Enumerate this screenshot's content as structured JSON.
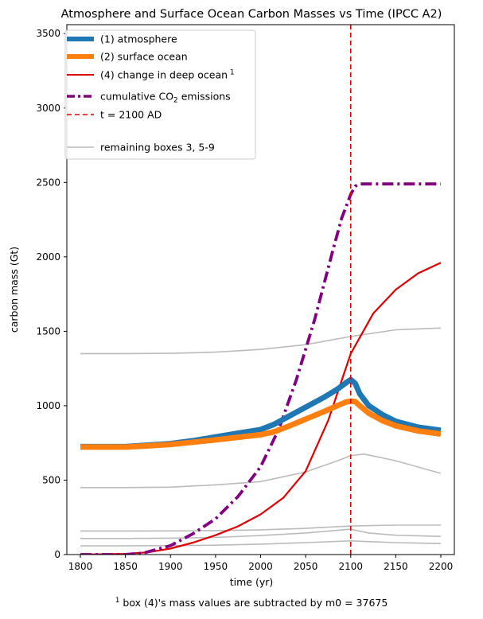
{
  "chart_data": {
    "type": "line",
    "title": "Atmosphere and Surface Ocean Carbon Masses vs Time (IPCC A2)",
    "xlabel": "time (yr)",
    "ylabel": "carbon mass (Gt)",
    "xlim": [
      1785,
      2215
    ],
    "ylim": [
      0,
      3560
    ],
    "xticks": [
      1800,
      1850,
      1900,
      1950,
      2000,
      2050,
      2100,
      2150,
      2200
    ],
    "yticks": [
      0,
      500,
      1000,
      1500,
      2000,
      2500,
      3000,
      3500
    ],
    "grid": false,
    "legend_position": "top-left",
    "footnote": "box (4)'s mass values are subtracted by m0 = 37675",
    "vertical_line": {
      "x": 2100,
      "label": "t = 2100 AD",
      "color": "#e00000"
    },
    "series": [
      {
        "name": "(1) atmosphere",
        "color": "#1f77b4",
        "style": "solid",
        "x": [
          1800,
          1850,
          1875,
          1900,
          1925,
          1950,
          1975,
          2000,
          2015,
          2030,
          2050,
          2070,
          2085,
          2095,
          2100,
          2105,
          2110,
          2120,
          2135,
          2150,
          2175,
          2200
        ],
        "y": [
          725,
          725,
          735,
          745,
          765,
          790,
          815,
          840,
          875,
          925,
          990,
          1055,
          1110,
          1155,
          1175,
          1150,
          1080,
          1000,
          940,
          895,
          855,
          835
        ]
      },
      {
        "name": "(2) surface ocean",
        "color": "#ff7f0e",
        "style": "solid",
        "x": [
          1800,
          1850,
          1875,
          1900,
          1925,
          1950,
          1975,
          2000,
          2015,
          2030,
          2050,
          2070,
          2085,
          2095,
          2100,
          2105,
          2110,
          2120,
          2135,
          2150,
          2175,
          2200
        ],
        "y": [
          722,
          722,
          730,
          740,
          755,
          770,
          788,
          805,
          825,
          860,
          910,
          960,
          1000,
          1025,
          1030,
          1028,
          1000,
          950,
          900,
          865,
          830,
          810
        ]
      },
      {
        "name": "(4) change in deep ocean",
        "name_superscript": "1",
        "color": "#e00000",
        "style": "solid",
        "x": [
          1800,
          1850,
          1875,
          1900,
          1925,
          1950,
          1975,
          2000,
          2025,
          2050,
          2075,
          2100,
          2125,
          2150,
          2175,
          2200
        ],
        "y": [
          0,
          5,
          15,
          40,
          80,
          130,
          190,
          270,
          380,
          560,
          900,
          1350,
          1620,
          1780,
          1890,
          1960
        ]
      },
      {
        "name": "cumulative CO2 emissions",
        "color": "#800080",
        "style": "dashdot",
        "x": [
          1800,
          1850,
          1870,
          1900,
          1925,
          1950,
          1975,
          2000,
          2020,
          2040,
          2060,
          2080,
          2090,
          2100,
          2105,
          2110,
          2150,
          2200
        ],
        "y": [
          0,
          0,
          10,
          60,
          140,
          240,
          390,
          590,
          840,
          1180,
          1580,
          2040,
          2260,
          2420,
          2475,
          2490,
          2490,
          2490
        ]
      },
      {
        "name": "remaining boxes 3, 5-9",
        "color": "#bbbbbb",
        "style": "solid",
        "lines": [
          {
            "x": [
              1800,
              1850,
              1900,
              1950,
              2000,
              2050,
              2100,
              2150,
              2200
            ],
            "y": [
              1350,
              1350,
              1352,
              1360,
              1378,
              1410,
              1465,
              1510,
              1522
            ]
          },
          {
            "x": [
              1800,
              1850,
              1900,
              1950,
              2000,
              2050,
              2090,
              2100,
              2115,
              2150,
              2200
            ],
            "y": [
              450,
              450,
              453,
              468,
              490,
              555,
              640,
              665,
              675,
              630,
              545
            ]
          },
          {
            "x": [
              1800,
              1850,
              1900,
              1950,
              2000,
              2050,
              2100,
              2150,
              2200
            ],
            "y": [
              158,
              158,
              159,
              161,
              166,
              176,
              192,
              198,
              198
            ]
          },
          {
            "x": [
              1800,
              1850,
              1900,
              1950,
              2000,
              2050,
              2095,
              2100,
              2120,
              2150,
              2200
            ],
            "y": [
              108,
              108,
              110,
              115,
              128,
              145,
              168,
              170,
              145,
              130,
              122
            ]
          },
          {
            "x": [
              1800,
              1850,
              1900,
              1950,
              2000,
              2050,
              2100,
              2125,
              2150,
              2200
            ],
            "y": [
              58,
              58,
              60,
              63,
              70,
              80,
              92,
              86,
              80,
              74
            ]
          }
        ]
      }
    ]
  },
  "legend": {
    "entries": [
      {
        "label": "(1) atmosphere",
        "color": "#1f77b4",
        "style": "thick-solid"
      },
      {
        "label": "(2) surface ocean",
        "color": "#ff7f0e",
        "style": "thick-solid"
      },
      {
        "label": "(4) change in deep ocean",
        "sup": "1",
        "color": "#e00000",
        "style": "solid"
      },
      {
        "label": "cumulative CO",
        "sub": "2",
        "label_after": " emissions",
        "color": "#800080",
        "style": "dashdot"
      },
      {
        "label": "t = 2100 AD",
        "color": "#e00000",
        "style": "dashed"
      },
      {
        "label": "",
        "color": "",
        "style": "blank"
      },
      {
        "label": "remaining boxes 3, 5-9",
        "color": "#bbbbbb",
        "style": "solid"
      }
    ]
  }
}
